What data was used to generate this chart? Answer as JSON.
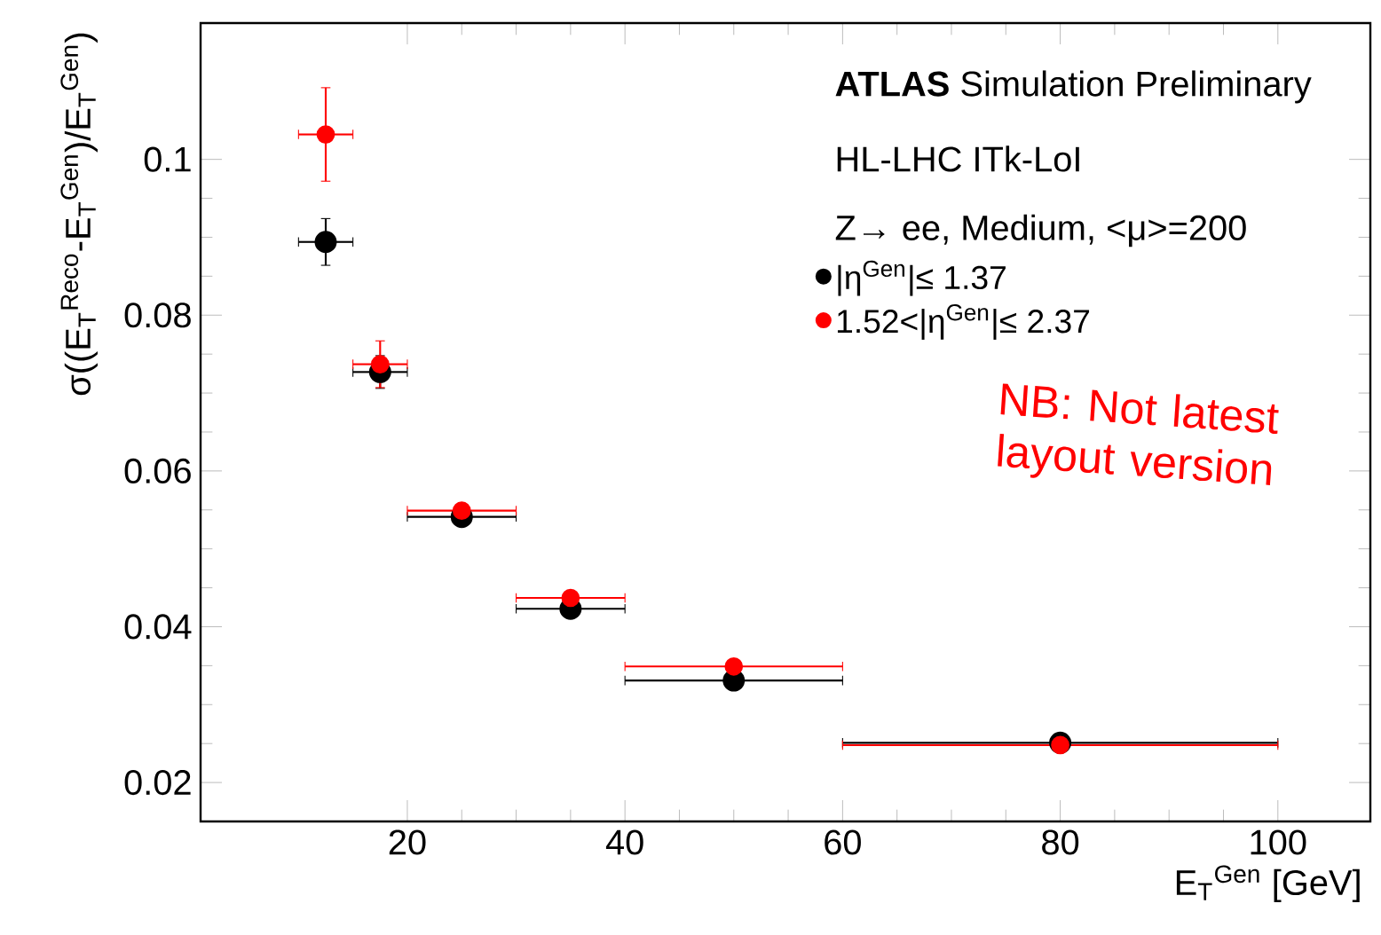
{
  "chart_data": {
    "type": "scatter",
    "xlabel": "E$_{T}$$^{Gen}$ [GeV]",
    "ylabel": "σ((E$_{T}$$^{Reco}$-E$_{T}$$^{Gen}$)/E$_{T}$$^{Gen}$)",
    "x": [
      12.5,
      17.5,
      25,
      35,
      50,
      80
    ],
    "series": [
      {
        "name": "|η$^{Gen}$|≤ 1.37",
        "color": "#000000",
        "values": [
          0.0894,
          0.0727,
          0.0541,
          0.0423,
          0.0331,
          0.0251
        ],
        "errors": [
          0.003,
          0.0021,
          null,
          null,
          null,
          null
        ],
        "xerrors": [
          2.5,
          2.5,
          5,
          5,
          10,
          20
        ]
      },
      {
        "name": "1.52<|η$^{Gen}$|≤ 2.37",
        "color": "#ff0000",
        "values": [
          0.1032,
          0.0737,
          0.0549,
          0.0437,
          0.0349,
          0.0248
        ],
        "errors": [
          0.006,
          0.003,
          null,
          null,
          null,
          null
        ],
        "xerrors": [
          2.5,
          2.5,
          5,
          5,
          10,
          20
        ]
      }
    ],
    "annotations": [
      "**ATLAS** Simulation Preliminary",
      "HL-LHC ITk-LoI",
      "Z→ ee, Medium, <μ>=200",
      "NB: Not latest layout version"
    ],
    "xlim": [
      1,
      108.5
    ],
    "ylim": [
      0.015,
      0.1175
    ],
    "xticks": [
      20,
      40,
      60,
      80,
      100
    ],
    "yticks": [
      0.02,
      0.04,
      0.06,
      0.08,
      {
        "value": 0.1,
        "label": "0.1"
      }
    ],
    "marker": "circle",
    "legend": "top right",
    "grid": false
  }
}
